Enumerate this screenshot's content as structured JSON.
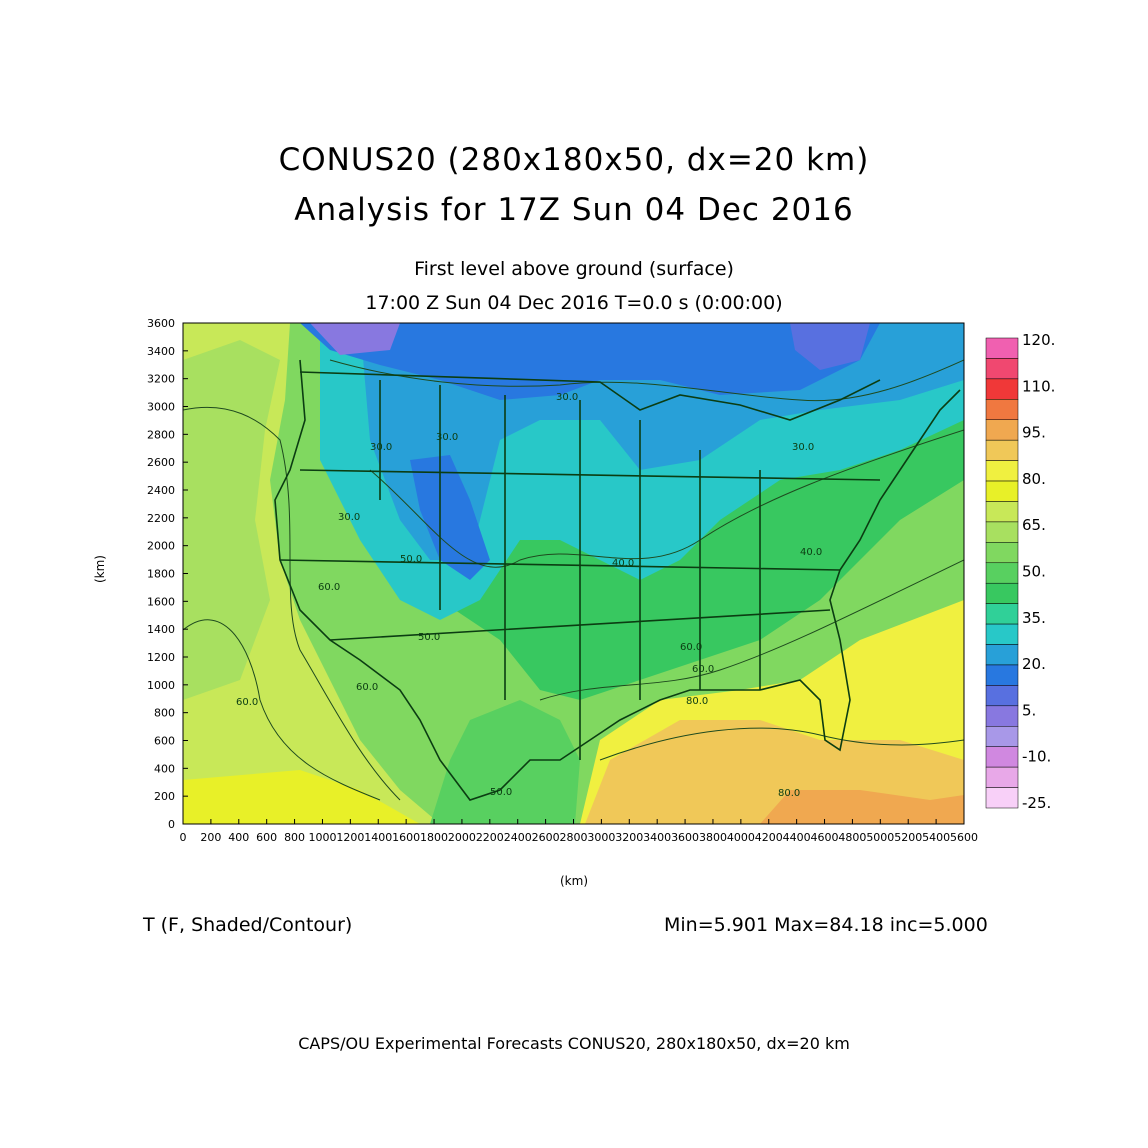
{
  "header": {
    "title_line1": "CONUS20 (280x180x50, dx=20 km)",
    "title_line2": "Analysis for 17Z Sun 04 Dec 2016",
    "subtitle_level": "First level above ground (surface)",
    "subtitle_time": "17:00 Z Sun 04 Dec 2016    T=0.0 s (0:00:00)"
  },
  "axes": {
    "x_label": "(km)",
    "y_label": "(km)",
    "x_ticks": [
      "0",
      "200",
      "400",
      "600",
      "800",
      "1000",
      "1200",
      "1400",
      "1600",
      "1800",
      "2000",
      "2200",
      "2400",
      "2600",
      "2800",
      "3000",
      "3200",
      "3400",
      "3600",
      "3800",
      "4000",
      "4200",
      "4400",
      "4600",
      "4800",
      "5000",
      "5200",
      "5400",
      "5600"
    ],
    "y_ticks": [
      "0",
      "200",
      "400",
      "600",
      "800",
      "1000",
      "1200",
      "1400",
      "1600",
      "1800",
      "2000",
      "2200",
      "2400",
      "2600",
      "2800",
      "3000",
      "3200",
      "3400",
      "3600"
    ],
    "x_range": [
      0,
      5600
    ],
    "y_range": [
      0,
      3600
    ]
  },
  "colorbar": {
    "labels": [
      "120.",
      "110.",
      "95.",
      "80.",
      "65.",
      "50.",
      "35.",
      "20.",
      "5.",
      "-10.",
      "-25."
    ],
    "colors": [
      "#f060b0",
      "#f04870",
      "#f03838",
      "#f07840",
      "#f0a850",
      "#f0c858",
      "#f0f040",
      "#e8f028",
      "#c8e858",
      "#a8e060",
      "#80d860",
      "#58d060",
      "#38c860",
      "#30d098",
      "#28c8c8",
      "#28a0d8",
      "#2878e0",
      "#5870e0",
      "#8878e0",
      "#a898e8",
      "#d088e0",
      "#e8a8e8",
      "#f8d0f8"
    ],
    "colors_order": "top-to-bottom"
  },
  "map": {
    "contour_labels": [
      "30.0",
      "30.0",
      "30.0",
      "30.0",
      "30.0",
      "40.0",
      "40.0",
      "50.0",
      "50.0",
      "50.0",
      "60.0",
      "60.0",
      "60.0",
      "60.0",
      "60.0",
      "80.0",
      "80.0"
    ]
  },
  "footer": {
    "field": "T (F, Shaded/Contour)",
    "stats": "Min=5.901  Max=84.18  inc=5.000",
    "credits": "CAPS/OU Experimental Forecasts   CONUS20, 280x180x50, dx=20 km"
  }
}
